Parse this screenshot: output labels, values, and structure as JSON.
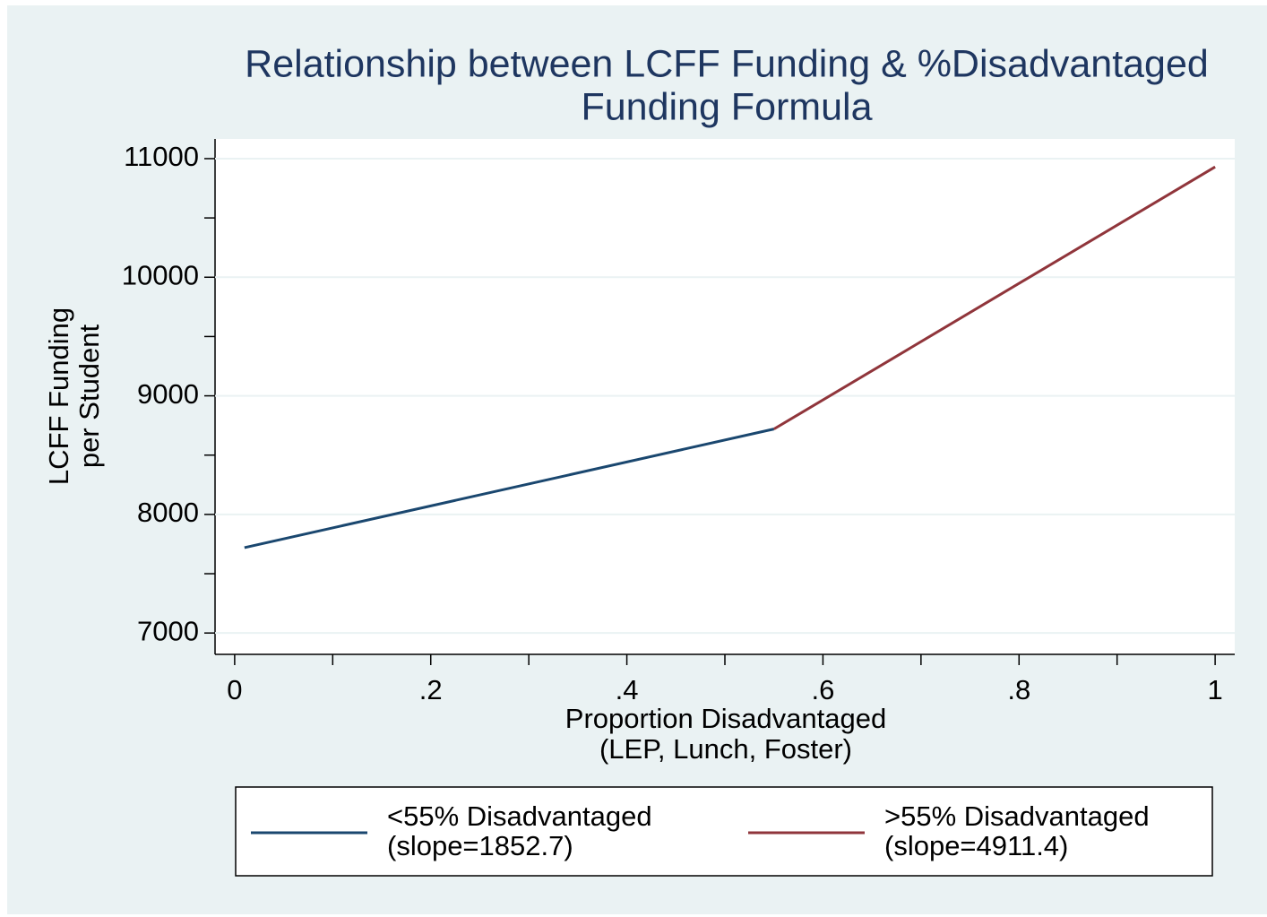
{
  "chart_data": {
    "type": "line",
    "title": [
      "Relationship between LCFF Funding & %Disadvantaged",
      "Funding Formula"
    ],
    "x_label": [
      "Proportion Disadvantaged",
      "(LEP, Lunch, Foster)"
    ],
    "y_label": [
      "LCFF Funding",
      "per Student"
    ],
    "series": [
      {
        "name": [
          "<55% Disadvantaged",
          "(slope=1852.7)"
        ],
        "color": "#1a476f",
        "x": [
          0.01,
          0.55
        ],
        "values": [
          7720,
          8720
        ]
      },
      {
        "name": [
          ">55% Disadvantaged",
          "(slope=4911.4)"
        ],
        "color": "#90353b",
        "x": [
          0.55,
          1.0
        ],
        "values": [
          8720,
          10930
        ]
      }
    ],
    "xlim": [
      -0.02,
      1.02
    ],
    "ylim": [
      6820,
      11166
    ],
    "xticks": [
      0,
      {
        "value": 0.2,
        "label": ".2"
      },
      {
        "value": 0.4,
        "label": ".4"
      },
      {
        "value": 0.6,
        "label": ".6"
      },
      {
        "value": 0.8,
        "label": ".8"
      },
      1
    ],
    "xminorticks": [
      0.1,
      0.3,
      0.5,
      0.7,
      0.9
    ],
    "yticks": [
      7000,
      8000,
      9000,
      10000,
      11000
    ],
    "yminorticks": [
      7500,
      8500,
      9500,
      10500
    ],
    "grid": true,
    "legend": "bottom"
  }
}
